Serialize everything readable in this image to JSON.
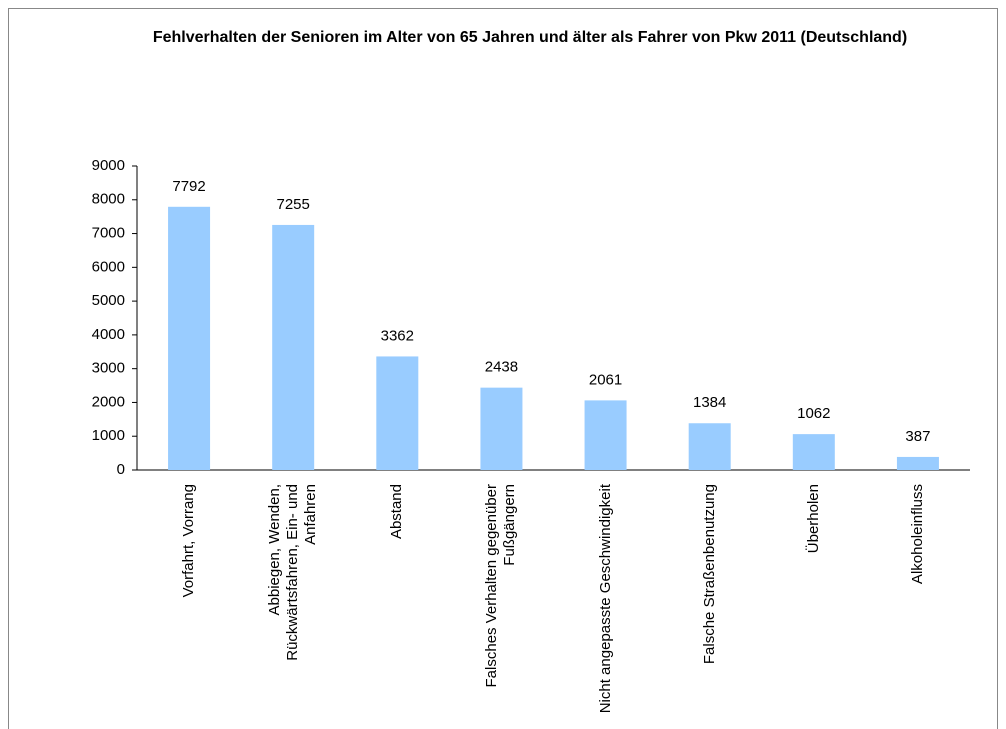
{
  "chart_data": {
    "type": "bar",
    "title": "Fehlverhalten der Senioren im Alter von 65 Jahren und älter als Fahrer von Pkw 2011 (Deutschland)",
    "categories": [
      "Vorfahrt, Vorrang",
      "Abbiegen, Wenden, Rückwärtsfahren, Ein- und Anfahren",
      "Abstand",
      "Falsches Verhalten gegenüber Fußgängern",
      "Nicht angepasste Geschwindigkeit",
      "Falsche Straßenbenutzung",
      "Überholen",
      "Alkoholeinfluss"
    ],
    "values": [
      7792,
      7255,
      3362,
      2438,
      2061,
      1384,
      1062,
      387
    ],
    "color": "#99ccff",
    "ylim": [
      0,
      9000
    ],
    "yticks": [
      0,
      1000,
      2000,
      3000,
      4000,
      5000,
      6000,
      7000,
      8000,
      9000
    ],
    "grid": false
  }
}
